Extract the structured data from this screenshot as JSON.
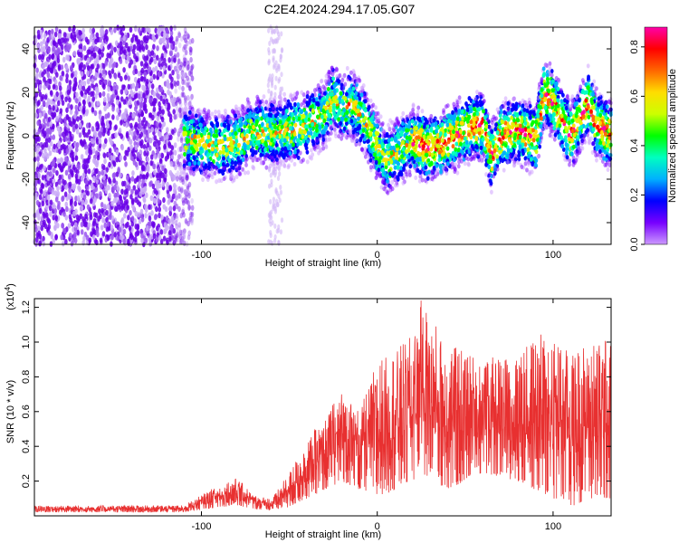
{
  "title": "C2E4.2024.294.17.05.G07",
  "chart_data": [
    {
      "type": "heatmap",
      "xlabel": "Height of straight line (km)",
      "ylabel": "Frequency (Hz)",
      "xlim": [
        -195,
        133
      ],
      "ylim": [
        -50,
        50
      ],
      "x_ticks": [
        -100,
        0,
        100
      ],
      "x_tick_labels": [
        "-100",
        "0",
        "100"
      ],
      "y_ticks": [
        -40,
        -20,
        0,
        20,
        40
      ],
      "y_tick_labels": [
        "-40",
        "-20",
        "0",
        "20",
        "40"
      ],
      "colorbar": {
        "label": "Normalized spectral amplitude",
        "range": [
          0,
          0.88
        ],
        "ticks": [
          "0.0",
          "0.2",
          "0.4",
          "0.6",
          "0.8"
        ],
        "colors": [
          "#cc99ff",
          "#7700ff",
          "#0000ff",
          "#00b0ff",
          "#00ffc0",
          "#00ff00",
          "#ccff00",
          "#ffdd00",
          "#ff6600",
          "#ff0000",
          "#ff00aa"
        ]
      },
      "ridge": [
        {
          "x": -110,
          "y": -2
        },
        {
          "x": -100,
          "y": -3
        },
        {
          "x": -90,
          "y": -5
        },
        {
          "x": -80,
          "y": -3
        },
        {
          "x": -70,
          "y": 2
        },
        {
          "x": -60,
          "y": 1
        },
        {
          "x": -50,
          "y": 2
        },
        {
          "x": -40,
          "y": 5
        },
        {
          "x": -30,
          "y": 10
        },
        {
          "x": -25,
          "y": 18
        },
        {
          "x": -20,
          "y": 12
        },
        {
          "x": -15,
          "y": 15
        },
        {
          "x": -8,
          "y": 8
        },
        {
          "x": 0,
          "y": -5
        },
        {
          "x": 5,
          "y": -12
        },
        {
          "x": 10,
          "y": -8
        },
        {
          "x": 20,
          "y": -2
        },
        {
          "x": 30,
          "y": -6
        },
        {
          "x": 40,
          "y": -2
        },
        {
          "x": 50,
          "y": 3
        },
        {
          "x": 60,
          "y": 5
        },
        {
          "x": 65,
          "y": -10
        },
        {
          "x": 70,
          "y": 0
        },
        {
          "x": 80,
          "y": 3
        },
        {
          "x": 90,
          "y": -2
        },
        {
          "x": 95,
          "y": 20
        },
        {
          "x": 100,
          "y": 15
        },
        {
          "x": 110,
          "y": 0
        },
        {
          "x": 120,
          "y": 15
        },
        {
          "x": 125,
          "y": 5
        },
        {
          "x": 133,
          "y": 0
        }
      ]
    },
    {
      "type": "line",
      "xlabel": "Height of straight line (km)",
      "ylabel": "SNR (10 * v/v)",
      "yscale_label": "(x10",
      "yscale_exp": "4",
      "yscale_close": ")",
      "color": "#e83030",
      "xlim": [
        -195,
        133
      ],
      "ylim": [
        0,
        1.25
      ],
      "x_ticks": [
        -100,
        0,
        100
      ],
      "x_tick_labels": [
        "-100",
        "0",
        "100"
      ],
      "y_ticks": [
        0.2,
        0.4,
        0.6,
        0.8,
        1.0,
        1.2
      ],
      "y_tick_labels": [
        "0.2",
        "0.4",
        "0.6",
        "0.8",
        "1.0",
        "1.2"
      ],
      "envelope": [
        {
          "x": -195,
          "lo": 0.02,
          "hi": 0.06
        },
        {
          "x": -110,
          "lo": 0.02,
          "hi": 0.06
        },
        {
          "x": -90,
          "lo": 0.05,
          "hi": 0.18
        },
        {
          "x": -80,
          "lo": 0.06,
          "hi": 0.22
        },
        {
          "x": -70,
          "lo": 0.04,
          "hi": 0.12
        },
        {
          "x": -60,
          "lo": 0.03,
          "hi": 0.1
        },
        {
          "x": -50,
          "lo": 0.05,
          "hi": 0.25
        },
        {
          "x": -40,
          "lo": 0.1,
          "hi": 0.45
        },
        {
          "x": -30,
          "lo": 0.15,
          "hi": 0.55
        },
        {
          "x": -20,
          "lo": 0.2,
          "hi": 0.75
        },
        {
          "x": -10,
          "lo": 0.15,
          "hi": 0.6
        },
        {
          "x": 0,
          "lo": 0.1,
          "hi": 0.9
        },
        {
          "x": 10,
          "lo": 0.15,
          "hi": 0.95
        },
        {
          "x": 20,
          "lo": 0.2,
          "hi": 1.05
        },
        {
          "x": 25,
          "lo": 0.25,
          "hi": 1.25
        },
        {
          "x": 40,
          "lo": 0.15,
          "hi": 1.0
        },
        {
          "x": 60,
          "lo": 0.25,
          "hi": 0.9
        },
        {
          "x": 80,
          "lo": 0.2,
          "hi": 0.95
        },
        {
          "x": 100,
          "lo": 0.1,
          "hi": 1.1
        },
        {
          "x": 110,
          "lo": 0.05,
          "hi": 0.95
        },
        {
          "x": 120,
          "lo": 0.1,
          "hi": 1.0
        },
        {
          "x": 133,
          "lo": 0.1,
          "hi": 1.05
        }
      ]
    }
  ]
}
